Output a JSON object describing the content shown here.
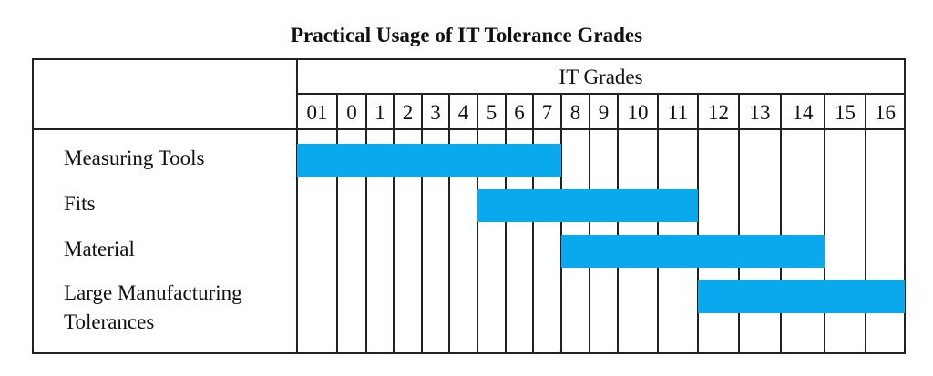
{
  "chart_data": {
    "type": "bar",
    "subtype": "gantt-range",
    "title": "Practical Usage of IT Tolerance Grades",
    "xlabel": "IT Grades",
    "categories": [
      "01",
      "0",
      "1",
      "2",
      "3",
      "4",
      "5",
      "6",
      "7",
      "8",
      "9",
      "10",
      "11",
      "12",
      "13",
      "14",
      "15",
      "16"
    ],
    "bar_color": "#0aa8ec",
    "series": [
      {
        "name": "Measuring Tools",
        "label_lines": [
          "Measuring Tools"
        ],
        "start": "01",
        "end": "7"
      },
      {
        "name": "Fits",
        "label_lines": [
          "Fits"
        ],
        "start": "5",
        "end": "11"
      },
      {
        "name": "Material",
        "label_lines": [
          "Material"
        ],
        "start": "8",
        "end": "14"
      },
      {
        "name": "Large Manufacturing Tolerances",
        "label_lines": [
          "Large Manufacturing",
          "Tolerances"
        ],
        "start": "12",
        "end": "16"
      }
    ]
  }
}
